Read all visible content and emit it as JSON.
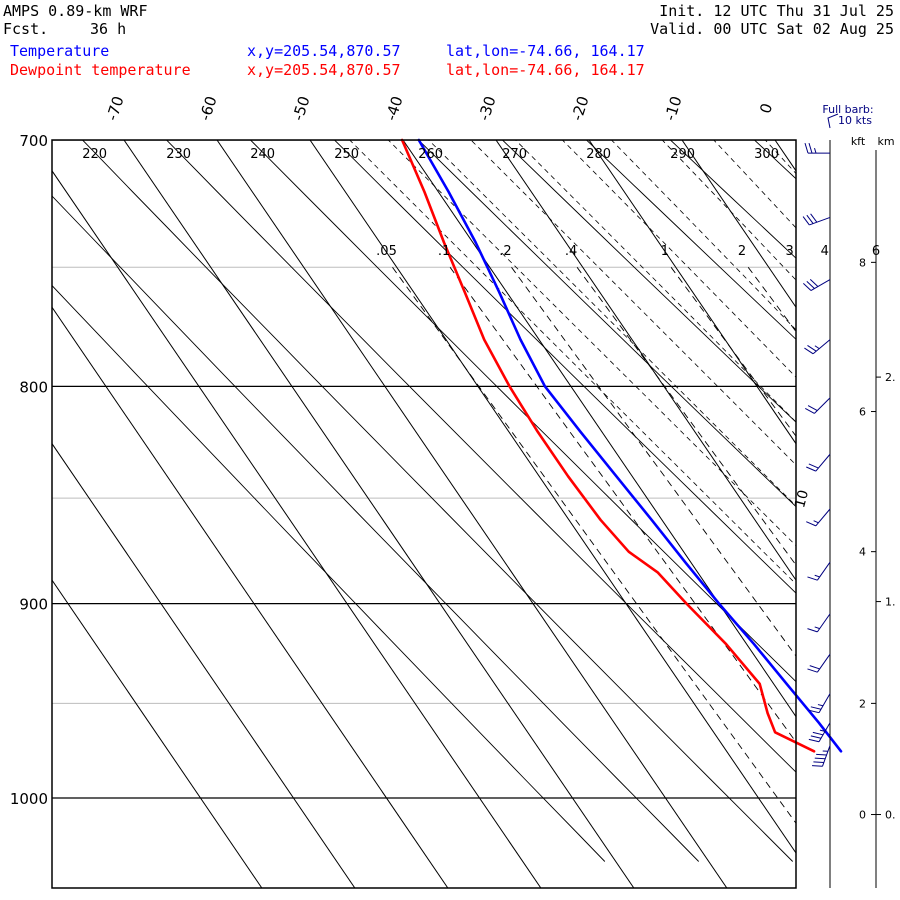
{
  "header": {
    "model": "AMPS 0.89-km WRF",
    "fcst_label": "Fcst.",
    "fcst_value": "36 h",
    "init": "Init. 12 UTC Thu 31 Jul 25",
    "valid": "Valid. 00 UTC Sat 02 Aug 25",
    "series": [
      {
        "name": "Temperature",
        "xy": "x,y=205.54,870.57",
        "latlon": "lat,lon=-74.66, 164.17",
        "color": "#0000ff"
      },
      {
        "name": "Dewpoint temperature",
        "xy": "x,y=205.54,870.57",
        "latlon": "lat,lon=-74.66, 164.17",
        "color": "#ff0000"
      }
    ]
  },
  "barb_key": {
    "line1": "Full barb:",
    "line2": "10 kts"
  },
  "height_axis": {
    "kft_label": "kft",
    "km_label": "km",
    "kft_ticks": [
      {
        "label": "0",
        "p": 1009
      },
      {
        "label": "2",
        "p": 950
      },
      {
        "label": "4",
        "p": 875
      },
      {
        "label": "6",
        "p": 811
      },
      {
        "label": "8",
        "p": 748
      }
    ],
    "km_ticks": [
      {
        "label": "0.",
        "p": 1009
      },
      {
        "label": "1.",
        "p": 899
      },
      {
        "label": "2.",
        "p": 796
      }
    ]
  },
  "chart_data": {
    "type": "line",
    "diagram": "skew-T log-P",
    "x_unit": "°C",
    "y_unit": "hPa",
    "y_scale": "log",
    "pressure_range": [
      700,
      1040
    ],
    "pressure_ticks": [
      700,
      800,
      900,
      1000
    ],
    "temperature_ticks": [
      -70,
      -60,
      -50,
      -40,
      -30,
      -20,
      -10,
      0
    ],
    "theta_labels": [
      220,
      230,
      240,
      250,
      260,
      270,
      280,
      290,
      300
    ],
    "mixing_ratio_labels": [
      ".05",
      ".1",
      ".2",
      ".4",
      "1",
      "2",
      "3",
      "4",
      "6"
    ],
    "mixing_ratio_values": [
      0.05,
      0.1,
      0.2,
      0.4,
      1,
      2,
      3,
      4,
      6
    ],
    "annotation": "10",
    "series": [
      {
        "name": "Temperature",
        "color": "#0000ff",
        "points": [
          [
            700,
            -38.3
          ],
          [
            720,
            -38.9
          ],
          [
            740,
            -39.7
          ],
          [
            760,
            -40.8
          ],
          [
            780,
            -42.0
          ],
          [
            800,
            -42.8
          ],
          [
            820,
            -42.3
          ],
          [
            840,
            -41.7
          ],
          [
            860,
            -41.1
          ],
          [
            880,
            -40.6
          ],
          [
            900,
            -40.0
          ],
          [
            920,
            -39.2
          ],
          [
            940,
            -38.6
          ],
          [
            960,
            -38.0
          ],
          [
            975,
            -37.7
          ]
        ]
      },
      {
        "name": "Dewpoint temperature",
        "color": "#ff0000",
        "points": [
          [
            700,
            -40.1
          ],
          [
            720,
            -41.5
          ],
          [
            740,
            -43.1
          ],
          [
            760,
            -44.5
          ],
          [
            780,
            -45.9
          ],
          [
            800,
            -46.6
          ],
          [
            820,
            -46.9
          ],
          [
            840,
            -46.9
          ],
          [
            860,
            -46.6
          ],
          [
            875,
            -45.9
          ],
          [
            885,
            -44.3
          ],
          [
            900,
            -43.5
          ],
          [
            920,
            -42.2
          ],
          [
            940,
            -41.5
          ],
          [
            955,
            -42.8
          ],
          [
            965,
            -43.4
          ],
          [
            975,
            -40.6
          ]
        ]
      }
    ],
    "wind_barbs": [
      {
        "p": 705,
        "dir": 270,
        "spd": 25
      },
      {
        "p": 730,
        "dir": 250,
        "spd": 30
      },
      {
        "p": 755,
        "dir": 240,
        "spd": 30
      },
      {
        "p": 780,
        "dir": 230,
        "spd": 25
      },
      {
        "p": 805,
        "dir": 225,
        "spd": 20
      },
      {
        "p": 830,
        "dir": 220,
        "spd": 20
      },
      {
        "p": 855,
        "dir": 220,
        "spd": 15
      },
      {
        "p": 880,
        "dir": 215,
        "spd": 15
      },
      {
        "p": 905,
        "dir": 215,
        "spd": 15
      },
      {
        "p": 925,
        "dir": 215,
        "spd": 20
      },
      {
        "p": 945,
        "dir": 210,
        "spd": 25
      },
      {
        "p": 960,
        "dir": 210,
        "spd": 35
      },
      {
        "p": 972,
        "dir": 200,
        "spd": 45
      }
    ]
  }
}
